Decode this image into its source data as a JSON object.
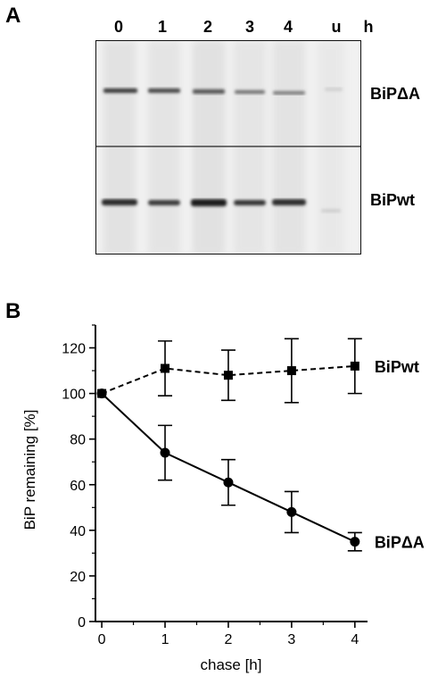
{
  "panel_a": {
    "letter": "A",
    "lanes": [
      "0",
      "1",
      "2",
      "3",
      "4",
      "u"
    ],
    "unit": "h",
    "band_labels": [
      "BiPΔA",
      "BiPwt"
    ]
  },
  "panel_b": {
    "letter": "B"
  },
  "chart_data": {
    "type": "line",
    "xlabel": "chase [h]",
    "ylabel": "BiP remaining [%]",
    "x": [
      0,
      1,
      2,
      3,
      4
    ],
    "xlim": [
      -0.1,
      4.2
    ],
    "ylim": [
      0,
      130
    ],
    "xticks": [
      "0",
      "1",
      "2",
      "3",
      "4"
    ],
    "yticks": [
      "0",
      "20",
      "40",
      "60",
      "80",
      "100",
      "120"
    ],
    "series": [
      {
        "name": "BiPwt",
        "values": [
          100,
          111,
          108,
          110,
          112
        ],
        "errors": [
          0,
          12,
          11,
          14,
          12
        ],
        "marker": "square",
        "line": "dashed"
      },
      {
        "name": "BiPΔA",
        "values": [
          100,
          74,
          61,
          48,
          35
        ],
        "errors": [
          0,
          12,
          10,
          9,
          4
        ],
        "marker": "circle",
        "line": "solid"
      }
    ],
    "grid": false
  }
}
